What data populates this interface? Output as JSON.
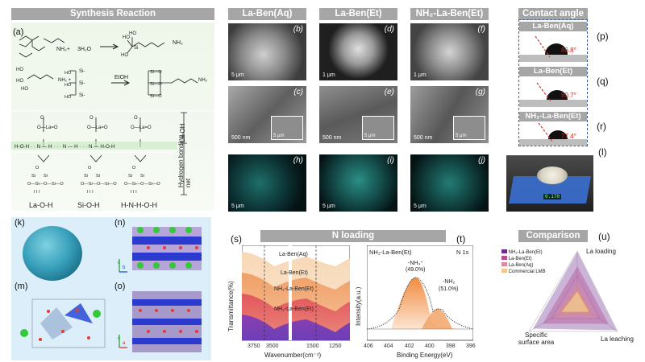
{
  "headers": {
    "synthesis": "Synthesis Reaction",
    "la_ben_aq": "La-Ben(Aq)",
    "la_ben_et": "La-Ben(Et)",
    "nh2_la_ben_et": "NH₂-La-Ben(Et)",
    "contact_angle": "Contact angle",
    "n_loading": "N loading",
    "comparison": "Comparison"
  },
  "panel_labels": {
    "a": "(a)",
    "b": "(b)",
    "c": "(c)",
    "d": "(d)",
    "e": "(e)",
    "f": "(f)",
    "g": "(g)",
    "h": "(h)",
    "i": "(i)",
    "j": "(j)",
    "k": "(k)",
    "l": "(l)",
    "m": "(m)",
    "n": "(n)",
    "o": "(o)",
    "p": "(p)",
    "q": "(q)",
    "r": "(r)",
    "s": "(s)",
    "t": "(t)",
    "u": "(u)"
  },
  "synthesis": {
    "water": "3H₂O",
    "etoh": "EtOH",
    "la_oh_side": "La-OH",
    "hbond_side": "Hydrogen bonding net",
    "hbond_chain": "H-O-H · · N — H · · · N — H · · · N — H-O-H",
    "legend": [
      "La-O-H",
      "Si-O-H",
      "H-N-H-O-H"
    ]
  },
  "sem_scalebars": {
    "b": "5 μm",
    "c": "500 nm",
    "c_inset": "5 μm",
    "d": "1 μm",
    "e": "500 nm",
    "e_inset": "5 μm",
    "f": "1 μm",
    "g": "500 nm",
    "g_inset": "5 μm",
    "h": "5 μm",
    "i": "5 μm",
    "j": "5 μm"
  },
  "contact_angle": {
    "samples": [
      {
        "name": "La-Ben(Aq)",
        "angle": "86.8°",
        "label": "(p)"
      },
      {
        "name": "La-Ben(Et)",
        "angle": "80.7°",
        "label": "(q)"
      },
      {
        "name": "NH₂-La-Ben(Et)",
        "angle": "77.4°",
        "label": "(r)"
      }
    ]
  },
  "scale_display": "0.170",
  "ftir": {
    "ylabel": "Transmittance(%)",
    "xlabel": "Wavenumber(cm⁻¹)",
    "ticks": [
      "3750",
      "3500",
      "1500",
      "1250"
    ],
    "series_names": [
      "La-Ben(Aq)",
      "La-Ben(Et)",
      "NH₂-La-Ben(Et)",
      "NH₂-La-Ben(Et)"
    ]
  },
  "xps": {
    "sample": "NH₂-La-Ben(Et)",
    "region": "N 1s",
    "ylabel": "Intensity(a.u.)",
    "xlabel": "Binding Energy(eV)",
    "ticks": [
      "406",
      "404",
      "402",
      "400",
      "398",
      "396"
    ],
    "peak1_name": "-NH₃⁺",
    "peak1_pct": "(49.0%)",
    "peak2_name": "-NH₂",
    "peak2_pct": "(51.0%)"
  },
  "comparison": {
    "legend": [
      "NH₂-La-Ben(Et)",
      "La-Ben(Et)",
      "La-Ben(Aq)",
      "Commercial LMB"
    ],
    "axes": [
      "La loading",
      "Specific surface area",
      "La leaching"
    ],
    "colors": {
      "nh2": "#6a2c91",
      "et": "#b84c8f",
      "aq": "#d98b9b",
      "lmb": "#f3c98b"
    }
  },
  "chart_data": [
    {
      "type": "line",
      "title": "",
      "xlabel": "Wavenumber(cm⁻¹)",
      "ylabel": "Transmittance(%)",
      "x_ticks": [
        3750,
        3500,
        1500,
        1250
      ],
      "series": [
        {
          "name": "La-Ben(Aq)"
        },
        {
          "name": "La-Ben(Et)"
        },
        {
          "name": "NH₂-La-Ben(Et)"
        },
        {
          "name": "NH₂-La-Ben(Et)"
        }
      ]
    },
    {
      "type": "line",
      "title": "N 1s",
      "xlabel": "Binding Energy(eV)",
      "ylabel": "Intensity(a.u.)",
      "xlim": [
        406,
        396
      ],
      "peaks": [
        {
          "label": "-NH₃⁺",
          "center": 401.8,
          "percent": 49.0
        },
        {
          "label": "-NH₂",
          "center": 399.6,
          "percent": 51.0
        }
      ]
    }
  ]
}
